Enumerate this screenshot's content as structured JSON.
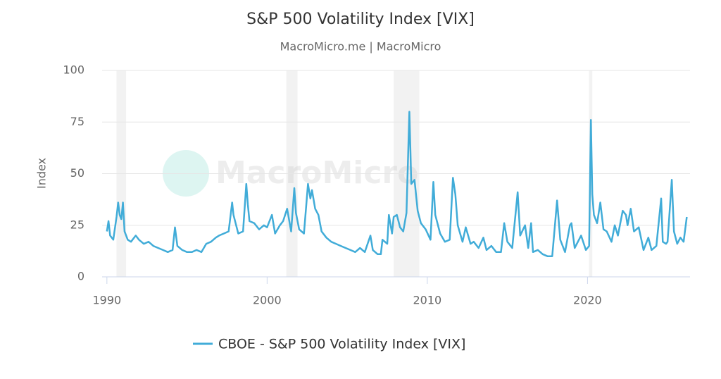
{
  "chart_data": {
    "type": "line",
    "title": "S&P 500 Volatility Index [VIX]",
    "subtitle": "MacroMicro.me | MacroMicro",
    "watermark": "MacroMicro",
    "ylabel": "Index",
    "xlim": [
      1989.7,
      2026.4
    ],
    "xticks": [
      1990,
      2000,
      2010,
      2020
    ],
    "ylim": [
      0,
      100
    ],
    "yticks": [
      0,
      25,
      50,
      75,
      100
    ],
    "grid": true,
    "legend": "bottom",
    "recessions": [
      [
        1990.6,
        1991.2
      ],
      [
        2001.2,
        2001.9
      ],
      [
        2007.9,
        2009.5
      ],
      [
        2020.1,
        2020.3
      ]
    ],
    "x": [
      1990.0,
      1990.1,
      1990.2,
      1990.4,
      1990.6,
      1990.7,
      1990.8,
      1990.9,
      1991.0,
      1991.1,
      1991.3,
      1991.5,
      1991.8,
      1992.0,
      1992.3,
      1992.6,
      1992.9,
      1993.2,
      1993.5,
      1993.8,
      1994.1,
      1994.25,
      1994.4,
      1994.7,
      1995.0,
      1995.3,
      1995.6,
      1995.9,
      1996.2,
      1996.5,
      1996.8,
      1997.0,
      1997.3,
      1997.6,
      1997.82,
      1997.9,
      1998.2,
      1998.5,
      1998.7,
      1998.8,
      1998.9,
      1999.2,
      1999.5,
      1999.8,
      2000.0,
      2000.3,
      2000.5,
      2000.8,
      2001.0,
      2001.25,
      2001.5,
      2001.7,
      2001.8,
      2002.0,
      2002.3,
      2002.55,
      2002.7,
      2002.8,
      2003.0,
      2003.2,
      2003.4,
      2003.7,
      2004.0,
      2004.3,
      2004.6,
      2004.9,
      2005.2,
      2005.5,
      2005.8,
      2006.1,
      2006.45,
      2006.6,
      2006.9,
      2007.1,
      2007.2,
      2007.5,
      2007.6,
      2007.8,
      2007.9,
      2008.1,
      2008.3,
      2008.5,
      2008.7,
      2008.88,
      2008.95,
      2009.0,
      2009.2,
      2009.4,
      2009.6,
      2009.9,
      2010.2,
      2010.38,
      2010.5,
      2010.8,
      2011.1,
      2011.4,
      2011.6,
      2011.75,
      2011.9,
      2012.2,
      2012.4,
      2012.7,
      2012.9,
      2013.2,
      2013.5,
      2013.7,
      2014.0,
      2014.3,
      2014.6,
      2014.8,
      2015.0,
      2015.3,
      2015.64,
      2015.8,
      2016.1,
      2016.3,
      2016.48,
      2016.6,
      2016.9,
      2017.2,
      2017.5,
      2017.8,
      2018.1,
      2018.3,
      2018.6,
      2018.9,
      2019.0,
      2019.2,
      2019.6,
      2019.9,
      2020.1,
      2020.21,
      2020.3,
      2020.4,
      2020.6,
      2020.8,
      2021.0,
      2021.2,
      2021.5,
      2021.7,
      2021.9,
      2022.2,
      2022.4,
      2022.5,
      2022.7,
      2022.9,
      2023.2,
      2023.5,
      2023.8,
      2024.0,
      2024.3,
      2024.6,
      2024.7,
      2024.9,
      2025.0,
      2025.26,
      2025.4,
      2025.6,
      2025.8,
      2026.0,
      2026.2
    ],
    "series": [
      {
        "name": "CBOE - S&P 500 Volatility Index [VIX]",
        "color": "#41acd8",
        "values": [
          22,
          27,
          20,
          18,
          29,
          36,
          30,
          28,
          36,
          22,
          18,
          17,
          20,
          18,
          16,
          17,
          15,
          14,
          13,
          12,
          13,
          24,
          15,
          13,
          12,
          12,
          13,
          12,
          16,
          17,
          19,
          20,
          21,
          22,
          36,
          30,
          21,
          22,
          45,
          35,
          27,
          26,
          23,
          25,
          24,
          30,
          21,
          25,
          27,
          33,
          22,
          43,
          31,
          23,
          21,
          45,
          38,
          42,
          33,
          30,
          22,
          19,
          17,
          16,
          15,
          14,
          13,
          12,
          14,
          12,
          20,
          13,
          11,
          11,
          18,
          16,
          30,
          21,
          29,
          30,
          24,
          22,
          31,
          80,
          60,
          45,
          47,
          32,
          26,
          23,
          18,
          46,
          30,
          21,
          17,
          18,
          48,
          40,
          25,
          17,
          24,
          16,
          17,
          14,
          19,
          13,
          15,
          12,
          12,
          26,
          17,
          14,
          41,
          20,
          25,
          14,
          26,
          12,
          13,
          11,
          10,
          10,
          37,
          18,
          12,
          25,
          26,
          14,
          20,
          13,
          15,
          76,
          40,
          30,
          26,
          36,
          23,
          22,
          17,
          25,
          20,
          32,
          30,
          25,
          33,
          22,
          24,
          13,
          19,
          13,
          15,
          38,
          17,
          16,
          17,
          47,
          22,
          16,
          19,
          17,
          29
        ]
      }
    ]
  }
}
